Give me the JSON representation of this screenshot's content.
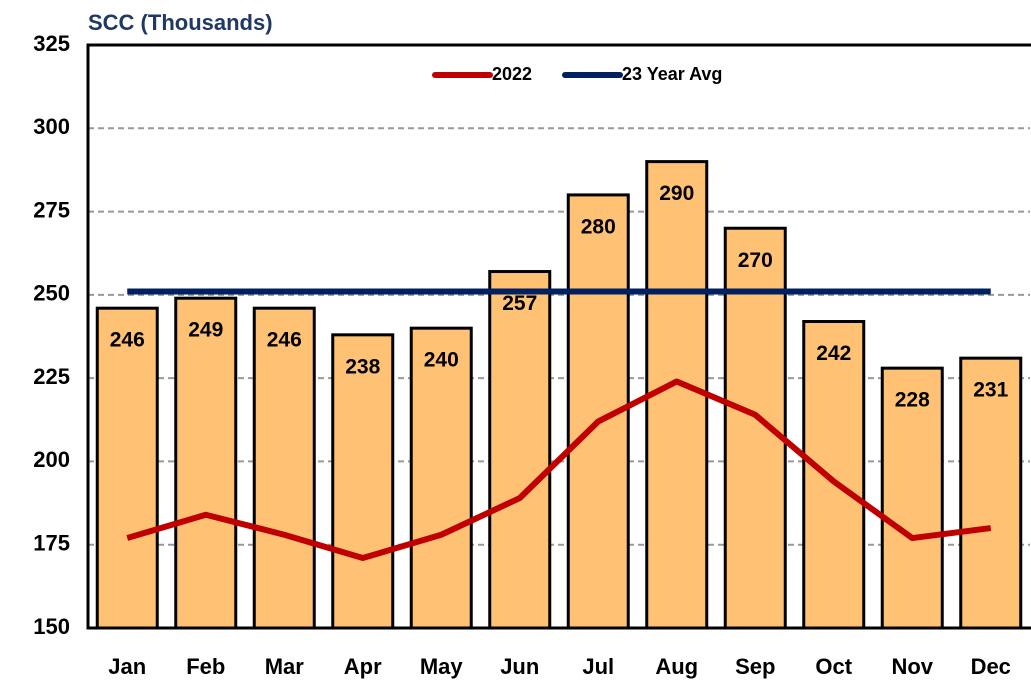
{
  "chart_data": {
    "type": "bar",
    "title": "SCC (Thousands)",
    "categories": [
      "Jan",
      "Feb",
      "Mar",
      "Apr",
      "May",
      "Jun",
      "Jul",
      "Aug",
      "Sep",
      "Oct",
      "Nov",
      "Dec"
    ],
    "values": [
      246,
      249,
      246,
      238,
      240,
      257,
      280,
      290,
      270,
      242,
      228,
      231
    ],
    "color": "#ffc274",
    "series": [
      {
        "name": "2022",
        "color": "#c00000",
        "values": [
          177,
          184,
          178,
          171,
          178,
          189,
          212,
          224,
          214,
          194,
          177,
          180
        ]
      },
      {
        "name": "23 Year Avg",
        "color": "#002060",
        "values": [
          251,
          251,
          251,
          251,
          251,
          251,
          251,
          251,
          251,
          251,
          251,
          251
        ]
      }
    ],
    "ylim": [
      150,
      325
    ],
    "yticks": [
      150,
      175,
      200,
      225,
      250,
      275,
      300,
      325
    ],
    "grid": true,
    "legend": "top"
  }
}
